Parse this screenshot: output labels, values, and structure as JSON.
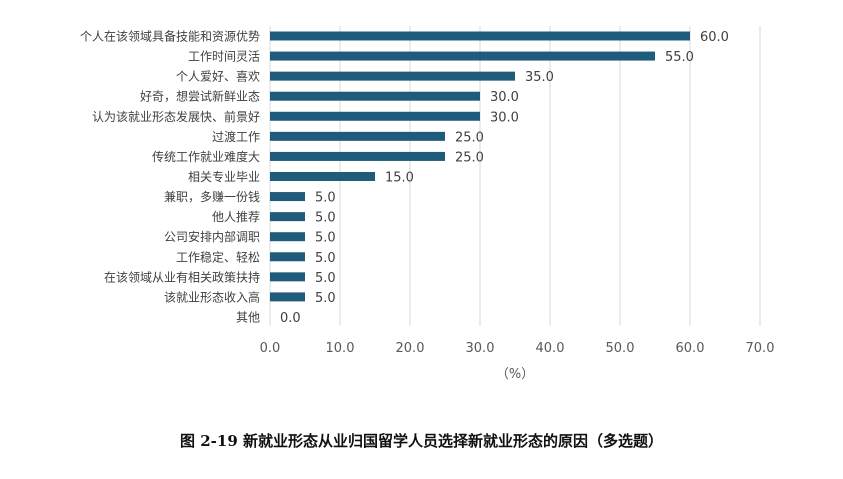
{
  "caption": "图 2-19  新就业形态从业归国留学人员选择新就业形态的原因（多选题）",
  "colors": {
    "bar": "#1f5b7a",
    "grid": "#d9d9d9"
  },
  "chart_data": {
    "type": "bar",
    "orientation": "horizontal",
    "categories": [
      "个人在该领域具备技能和资源优势",
      "工作时间灵活",
      "个人爱好、喜欢",
      "好奇，想尝试新鲜业态",
      "认为该就业形态发展快、前景好",
      "过渡工作",
      "传统工作就业难度大",
      "相关专业毕业",
      "兼职，多赚一份钱",
      "他人推荐",
      "公司安排内部调职",
      "工作稳定、轻松",
      "在该领域从业有相关政策扶持",
      "该就业形态收入高",
      "其他"
    ],
    "values": [
      60.0,
      55.0,
      35.0,
      30.0,
      30.0,
      25.0,
      25.0,
      15.0,
      5.0,
      5.0,
      5.0,
      5.0,
      5.0,
      5.0,
      0.0
    ],
    "data_labels": [
      "60.0",
      "55.0",
      "35.0",
      "30.0",
      "30.0",
      "25.0",
      "25.0",
      "15.0",
      "5.0",
      "5.0",
      "5.0",
      "5.0",
      "5.0",
      "5.0",
      "0.0"
    ],
    "xticks": [
      "0.0",
      "10.0",
      "20.0",
      "30.0",
      "40.0",
      "50.0",
      "60.0",
      "70.0"
    ],
    "xlim": [
      0,
      70
    ],
    "xlabel": "（%）",
    "ylabel": "",
    "grid": "vertical"
  }
}
